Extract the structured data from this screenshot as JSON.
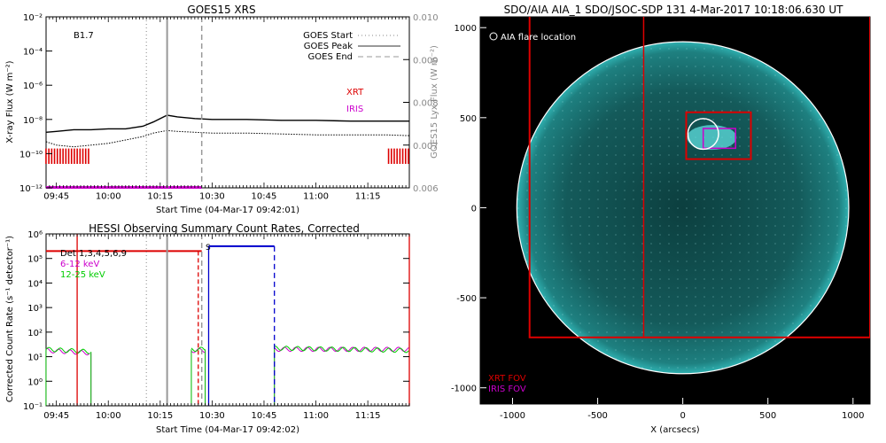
{
  "chart_data": [
    {
      "type": "line",
      "title": "GOES15 XRS",
      "xlabel": "Start Time (04-Mar-17 09:42:01)",
      "ylabel": "X-ray Flux (W m⁻²)",
      "ylabel2": "GOES15 Lyx Flux (W m⁻²)",
      "x_ticks": [
        "09:45",
        "10:00",
        "10:15",
        "10:30",
        "10:45",
        "11:00",
        "11:15"
      ],
      "y_ticks": [
        "10⁻²",
        "10⁻⁴",
        "10⁻⁶",
        "10⁻⁸",
        "10⁻¹⁰",
        "10⁻¹²"
      ],
      "y2_ticks": [
        "0.010",
        "0.009",
        "0.008",
        "0.007",
        "0.006"
      ],
      "y_scale": "log",
      "ylim_exp": [
        -12,
        -2
      ],
      "y2lim": [
        0.006,
        0.01
      ],
      "class_label": "B1.7",
      "legend": [
        "GOES Start",
        "GOES Peak",
        "GOES End"
      ],
      "legend_placement": "top-right",
      "annotations": [
        "XRT",
        "IRIS"
      ],
      "goes_start": "10:11",
      "goes_peak": "10:17",
      "goes_end": "10:27",
      "series": [
        {
          "name": "long",
          "x": [
            "09:42",
            "09:45",
            "09:50",
            "09:55",
            "10:00",
            "10:05",
            "10:10",
            "10:13",
            "10:17",
            "10:20",
            "10:25",
            "10:30",
            "10:40",
            "10:50",
            "11:00",
            "11:10",
            "11:20",
            "11:27"
          ],
          "log_flux": [
            -8.75,
            -8.7,
            -8.6,
            -8.6,
            -8.55,
            -8.55,
            -8.4,
            -8.15,
            -7.75,
            -7.85,
            -7.95,
            -8.0,
            -8.0,
            -8.05,
            -8.05,
            -8.1,
            -8.1,
            -8.1
          ]
        },
        {
          "name": "short",
          "x": [
            "09:42",
            "09:45",
            "09:50",
            "09:55",
            "10:00",
            "10:05",
            "10:10",
            "10:13",
            "10:17",
            "10:20",
            "10:25",
            "10:30",
            "10:40",
            "10:50",
            "11:00",
            "11:10",
            "11:20",
            "11:27"
          ],
          "log_flux": [
            -9.3,
            -9.5,
            -9.6,
            -9.5,
            -9.4,
            -9.2,
            -9.0,
            -8.8,
            -8.65,
            -8.7,
            -8.75,
            -8.8,
            -8.8,
            -8.85,
            -8.9,
            -8.9,
            -8.9,
            -8.95
          ]
        }
      ],
      "xrt_bars": [
        [
          "09:42",
          "09:55"
        ],
        [
          "11:21",
          "11:27"
        ]
      ],
      "iris_bar": [
        "09:42",
        "10:27"
      ]
    },
    {
      "type": "line",
      "title": "HESSI Observing Summary Count Rates, Corrected",
      "xlabel": "Start Time (04-Mar-17 09:42:02)",
      "ylabel": "Corrected Count Rate (s⁻¹ detector⁻¹)",
      "x_ticks": [
        "09:45",
        "10:00",
        "10:15",
        "10:30",
        "10:45",
        "11:00",
        "11:15"
      ],
      "y_ticks": [
        "10⁶",
        "10⁵",
        "10⁴",
        "10³",
        "10²",
        "10¹",
        "10⁰",
        "10⁻¹"
      ],
      "y_scale": "log",
      "ylim_exp": [
        -1,
        6
      ],
      "legend": [
        "Det 1,3,4,5,6,9",
        "6-12 keV",
        "12-25 keV"
      ],
      "legend_colors": [
        "#000000",
        "#cc00cc",
        "#00cc00"
      ],
      "s_marker": "S",
      "series": [
        {
          "name": "6-12 keV",
          "segments": [
            [
              [
                "09:42",
                1.25
              ],
              [
                "09:55",
                1.15
              ]
            ],
            [
              [
                "10:24",
                1.25
              ],
              [
                "10:28",
                1.25
              ]
            ],
            [
              [
                "10:48",
                1.3
              ],
              [
                "11:27",
                1.3
              ]
            ]
          ]
        },
        {
          "name": "12-25 keV",
          "segments": [
            [
              [
                "09:42",
                1.3
              ],
              [
                "09:55",
                1.2
              ]
            ],
            [
              [
                "10:24",
                1.3
              ],
              [
                "10:28",
                1.3
              ]
            ],
            [
              [
                "10:48",
                1.35
              ],
              [
                "11:27",
                1.25
              ]
            ]
          ]
        }
      ],
      "red_bar": [
        "09:42",
        "10:27"
      ],
      "blue_bar": [
        "10:29",
        "10:48"
      ],
      "vlines_red": [
        "09:51",
        "10:26",
        "11:27"
      ],
      "vlines_blue": [
        "10:29",
        "10:48"
      ],
      "goes_start": "10:11",
      "goes_peak": "10:17",
      "goes_end": "10:27"
    },
    {
      "type": "image",
      "title": "SDO/AIA AIA_1 SDO/JSOC-SDP 131   4-Mar-2017 10:18:06.630 UT",
      "xlabel": "X (arcsecs)",
      "x_ticks": [
        -1000,
        -500,
        0,
        500,
        1000
      ],
      "y_ticks": [
        1000,
        500,
        0,
        -500,
        -1000
      ],
      "xlim": [
        -1190,
        1100
      ],
      "ylim": [
        -1090,
        1060
      ],
      "legend_flare": "AIA flare location",
      "legend_xrt": "XRT FOV",
      "legend_iris": "IRIS FOV",
      "colors": {
        "xrt": "#dd0000",
        "iris": "#cc00cc",
        "disk": "#0f4a4a",
        "bg": "#000000"
      },
      "xrt_fov_large": [
        -900,
        -720,
        1100,
        2050
      ],
      "xrt_fov_mid": [
        -230,
        -720,
        1100,
        2050
      ],
      "xrt_fov_small": [
        20,
        270,
        400,
        530
      ],
      "iris_fov": [
        120,
        330,
        310,
        440
      ],
      "flare_circle": [
        120,
        410,
        90
      ]
    }
  ]
}
